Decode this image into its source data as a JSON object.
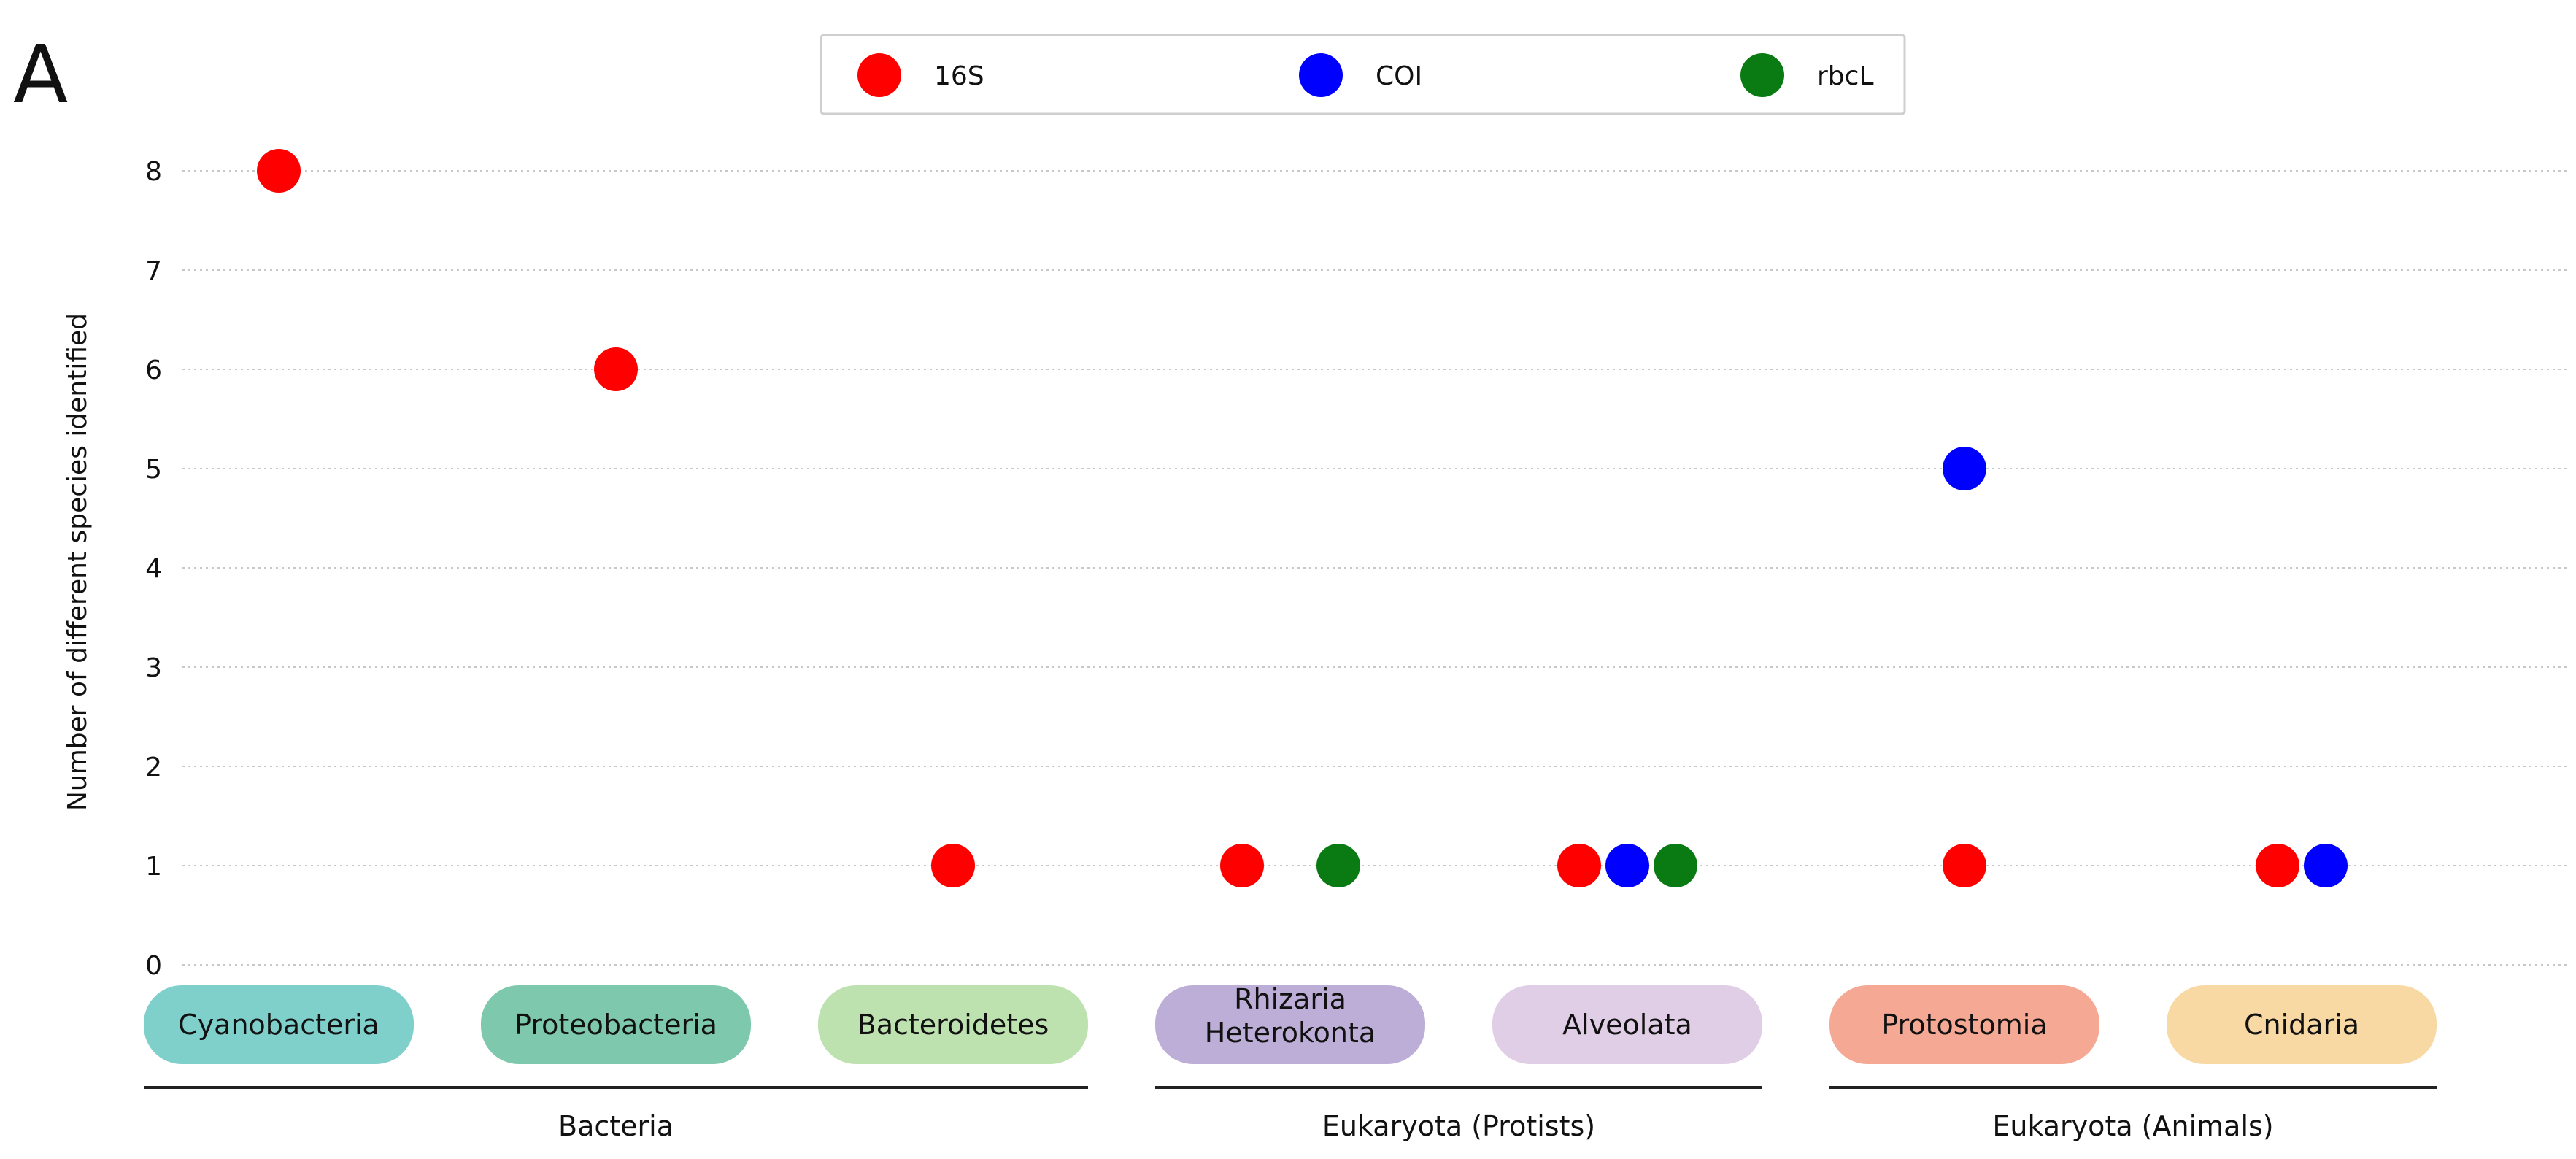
{
  "panel_label": "A",
  "chart_data": {
    "type": "scatter",
    "ylabel": "Number of different species identified",
    "xlabel": "",
    "ylim": [
      0,
      8
    ],
    "yticks": [
      0,
      1,
      2,
      3,
      4,
      5,
      6,
      7,
      8
    ],
    "grid": "horizontal dotted",
    "legend_position": "top-center",
    "categories": [
      {
        "label": "Cyanobacteria",
        "color": "#7fcfcb"
      },
      {
        "label": "Proteobacteria",
        "color": "#7ec8ad"
      },
      {
        "label": "Bacteroidetes",
        "color": "#bde2b0"
      },
      {
        "label": "Rhizaria\nHeterokonta",
        "color": "#bcaed6"
      },
      {
        "label": "Alveolata",
        "color": "#e0cde6"
      },
      {
        "label": "Protostomia",
        "color": "#f5a995"
      },
      {
        "label": "Cnidaria",
        "color": "#f8d9a3"
      }
    ],
    "groups": [
      {
        "label": "Bacteria",
        "from": 0,
        "to": 2
      },
      {
        "label": "Eukaryota (Protists)",
        "from": 3,
        "to": 4
      },
      {
        "label": "Eukaryota (Animals)",
        "from": 5,
        "to": 6
      }
    ],
    "series": [
      {
        "name": "16S",
        "color": "#ff0000",
        "values": [
          8,
          6,
          1,
          1,
          1,
          1,
          1
        ]
      },
      {
        "name": "COI",
        "color": "#0000ff",
        "values": [
          null,
          null,
          null,
          null,
          1,
          5,
          1
        ]
      },
      {
        "name": "rbcL",
        "color": "#0a7a12",
        "values": [
          null,
          null,
          null,
          1,
          1,
          null,
          null
        ]
      }
    ]
  }
}
